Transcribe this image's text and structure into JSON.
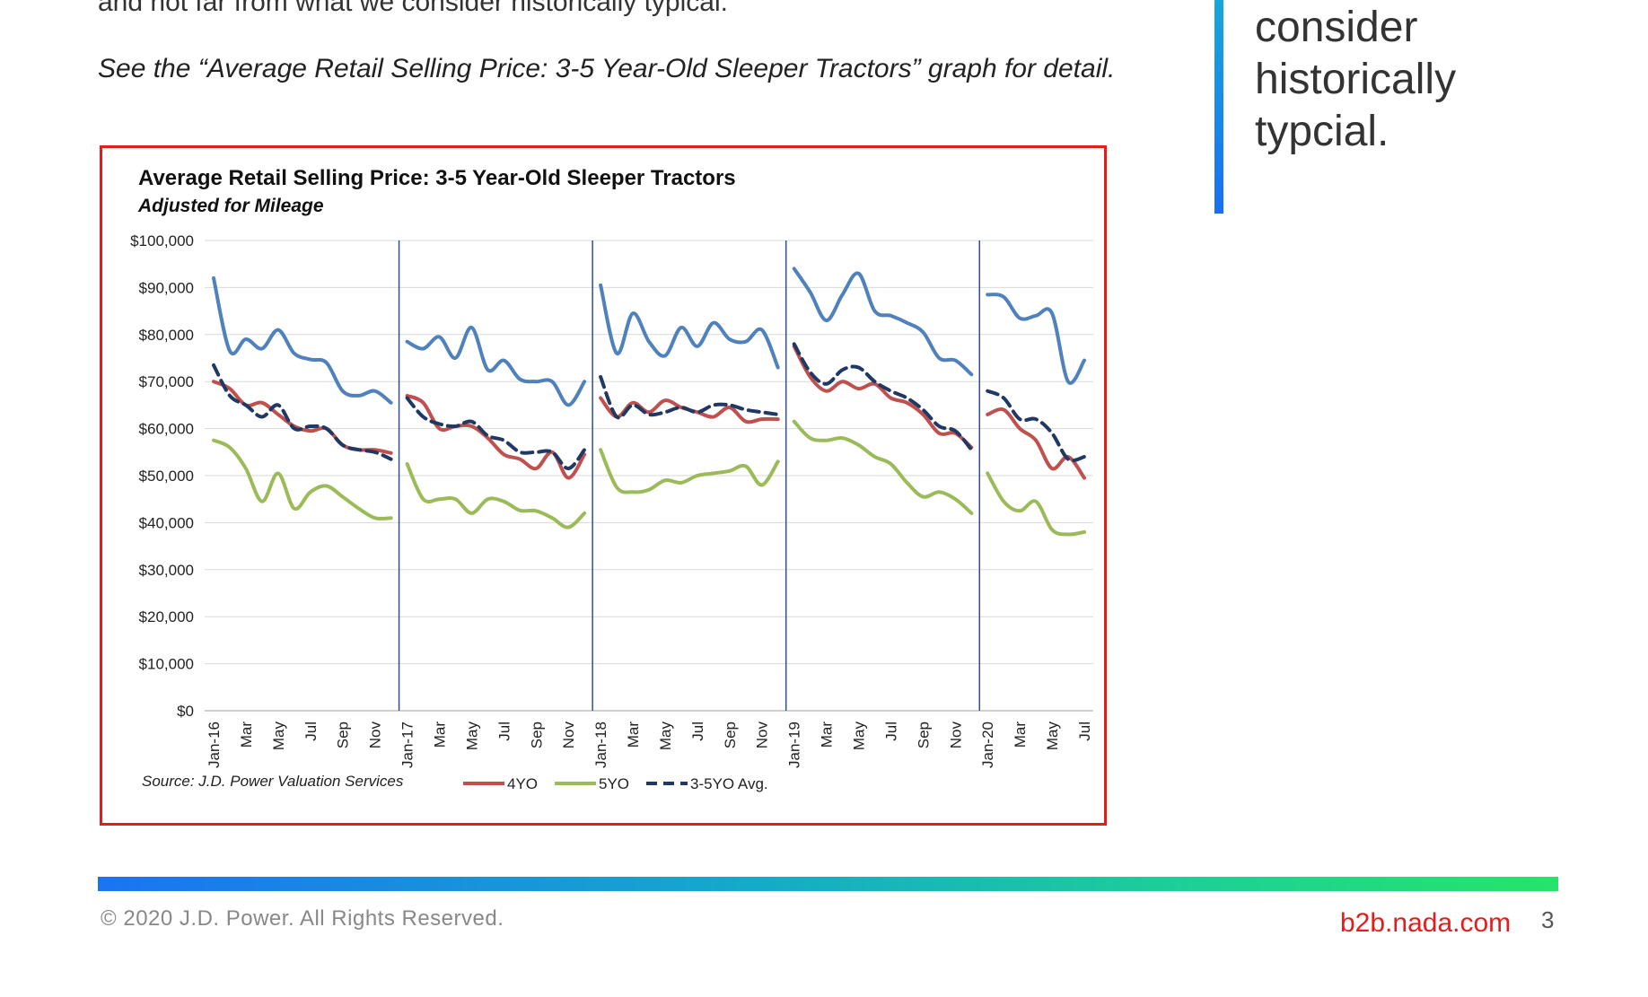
{
  "text": {
    "intro_fragment": "and not far from what we consider historically typical.",
    "see_detail": "See the “Average Retail Selling Price: 3-5 Year-Old Sleeper Tractors” graph for detail."
  },
  "pull_quote": {
    "lines": [
      "consider",
      "historically",
      "typcial."
    ]
  },
  "footer": {
    "copyright": "© 2020 J.D. Power. All Rights Reserved.",
    "site": "b2b.nada.com",
    "page": "3"
  },
  "colors": {
    "frame": "#e31d1d",
    "series_4yo": "#c0504d",
    "series_5yo": "#9bbb59",
    "series_avg": "#1f3864",
    "upper_line": "#4f81bd",
    "year_divider": "#2f4f8f"
  },
  "chart_data": {
    "type": "line",
    "title": "Average Retail Selling Price: 3-5 Year-Old Sleeper Tractors",
    "subtitle": "Adjusted for Mileage",
    "source": "Source: J.D. Power Valuation Services",
    "ylim": [
      0,
      100000
    ],
    "yticks": [
      "$0",
      "$10,000",
      "$20,000",
      "$30,000",
      "$40,000",
      "$50,000",
      "$60,000",
      "$70,000",
      "$80,000",
      "$90,000",
      "$100,000"
    ],
    "ytick_values": [
      0,
      10000,
      20000,
      30000,
      40000,
      50000,
      60000,
      70000,
      80000,
      90000,
      100000
    ],
    "x_tick_labels": [
      "Jan-16",
      "Mar",
      "May",
      "Jul",
      "Sep",
      "Nov",
      "Jan-17",
      "Mar",
      "May",
      "Jul",
      "Sep",
      "Nov",
      "Jan-18",
      "Mar",
      "May",
      "Jul",
      "Sep",
      "Nov",
      "Jan-19",
      "Mar",
      "May",
      "Jul",
      "Sep",
      "Nov",
      "Jan-20",
      "Mar",
      "May",
      "Jul"
    ],
    "months": [
      "Jan-16",
      "Feb-16",
      "Mar-16",
      "Apr-16",
      "May-16",
      "Jun-16",
      "Jul-16",
      "Aug-16",
      "Sep-16",
      "Oct-16",
      "Nov-16",
      "Dec-16",
      "Jan-17",
      "Feb-17",
      "Mar-17",
      "Apr-17",
      "May-17",
      "Jun-17",
      "Jul-17",
      "Aug-17",
      "Sep-17",
      "Oct-17",
      "Nov-17",
      "Dec-17",
      "Jan-18",
      "Feb-18",
      "Mar-18",
      "Apr-18",
      "May-18",
      "Jun-18",
      "Jul-18",
      "Aug-18",
      "Sep-18",
      "Oct-18",
      "Nov-18",
      "Dec-18",
      "Jan-19",
      "Feb-19",
      "Mar-19",
      "Apr-19",
      "May-19",
      "Jun-19",
      "Jul-19",
      "Aug-19",
      "Sep-19",
      "Oct-19",
      "Nov-19",
      "Dec-19",
      "Jan-20",
      "Feb-20",
      "Mar-20",
      "Apr-20",
      "May-20",
      "Jun-20",
      "Jul-20"
    ],
    "year_starts": [
      "Jan-17",
      "Jan-18",
      "Jan-19",
      "Jan-20"
    ],
    "grid": true,
    "legend_position": "bottom",
    "series": [
      {
        "name": "",
        "legend": false,
        "color": "#4f81bd",
        "dash": false,
        "values": [
          92000,
          76500,
          79000,
          77000,
          81000,
          76000,
          74700,
          74000,
          68000,
          67000,
          68000,
          65500,
          78500,
          77000,
          79500,
          75000,
          81500,
          72500,
          74500,
          70500,
          70000,
          70000,
          65000,
          70000,
          90500,
          76000,
          84500,
          78500,
          75500,
          81500,
          77500,
          82500,
          79000,
          78500,
          81000,
          73000,
          94000,
          89000,
          83000,
          88500,
          93000,
          85000,
          84000,
          82500,
          80500,
          75000,
          74500,
          71500,
          88500,
          88000,
          83500,
          84000,
          84500,
          70000,
          74500
        ]
      },
      {
        "name": "4YO",
        "legend": true,
        "color": "#c0504d",
        "dash": false,
        "values": [
          70000,
          68500,
          65000,
          65500,
          63000,
          60500,
          59500,
          60000,
          56500,
          55500,
          55500,
          54800,
          67000,
          65500,
          60000,
          60500,
          60500,
          58000,
          54500,
          53500,
          51500,
          55000,
          49500,
          54500,
          66500,
          62500,
          65500,
          63500,
          66000,
          64500,
          63500,
          62500,
          64500,
          61500,
          62000,
          62000,
          77500,
          71000,
          68000,
          70000,
          68500,
          69500,
          66500,
          65500,
          63000,
          59000,
          59000,
          56000,
          63000,
          64000,
          60000,
          57500,
          51500,
          54000,
          49500
        ]
      },
      {
        "name": "5YO",
        "legend": true,
        "color": "#9bbb59",
        "dash": false,
        "values": [
          57500,
          56000,
          51500,
          44500,
          50500,
          43000,
          46500,
          47800,
          45500,
          43000,
          41000,
          41000,
          52500,
          45000,
          45000,
          45000,
          42000,
          45000,
          44500,
          42600,
          42500,
          41000,
          39000,
          42000,
          55500,
          47500,
          46500,
          47000,
          49000,
          48500,
          50000,
          50500,
          51000,
          52000,
          48000,
          53000,
          61500,
          58000,
          57500,
          58000,
          56500,
          54000,
          52500,
          48500,
          45500,
          46500,
          45000,
          42000,
          50500,
          44500,
          42500,
          44500,
          38500,
          37500,
          38000
        ]
      },
      {
        "name": "3-5YO Avg.",
        "legend": true,
        "color": "#1f3864",
        "dash": true,
        "values": [
          73500,
          67000,
          65000,
          62500,
          65000,
          60000,
          60500,
          60000,
          56500,
          55500,
          55000,
          53500,
          66500,
          62500,
          61000,
          60500,
          61500,
          58500,
          57500,
          55000,
          55000,
          55000,
          51500,
          55500,
          71000,
          62500,
          65000,
          63000,
          63500,
          64500,
          63500,
          65000,
          65000,
          64000,
          63500,
          63000,
          78000,
          72000,
          69500,
          72500,
          73000,
          70000,
          68000,
          66500,
          64000,
          60500,
          59500,
          55500,
          68000,
          66500,
          62000,
          62000,
          59000,
          53500,
          54000
        ]
      }
    ]
  }
}
